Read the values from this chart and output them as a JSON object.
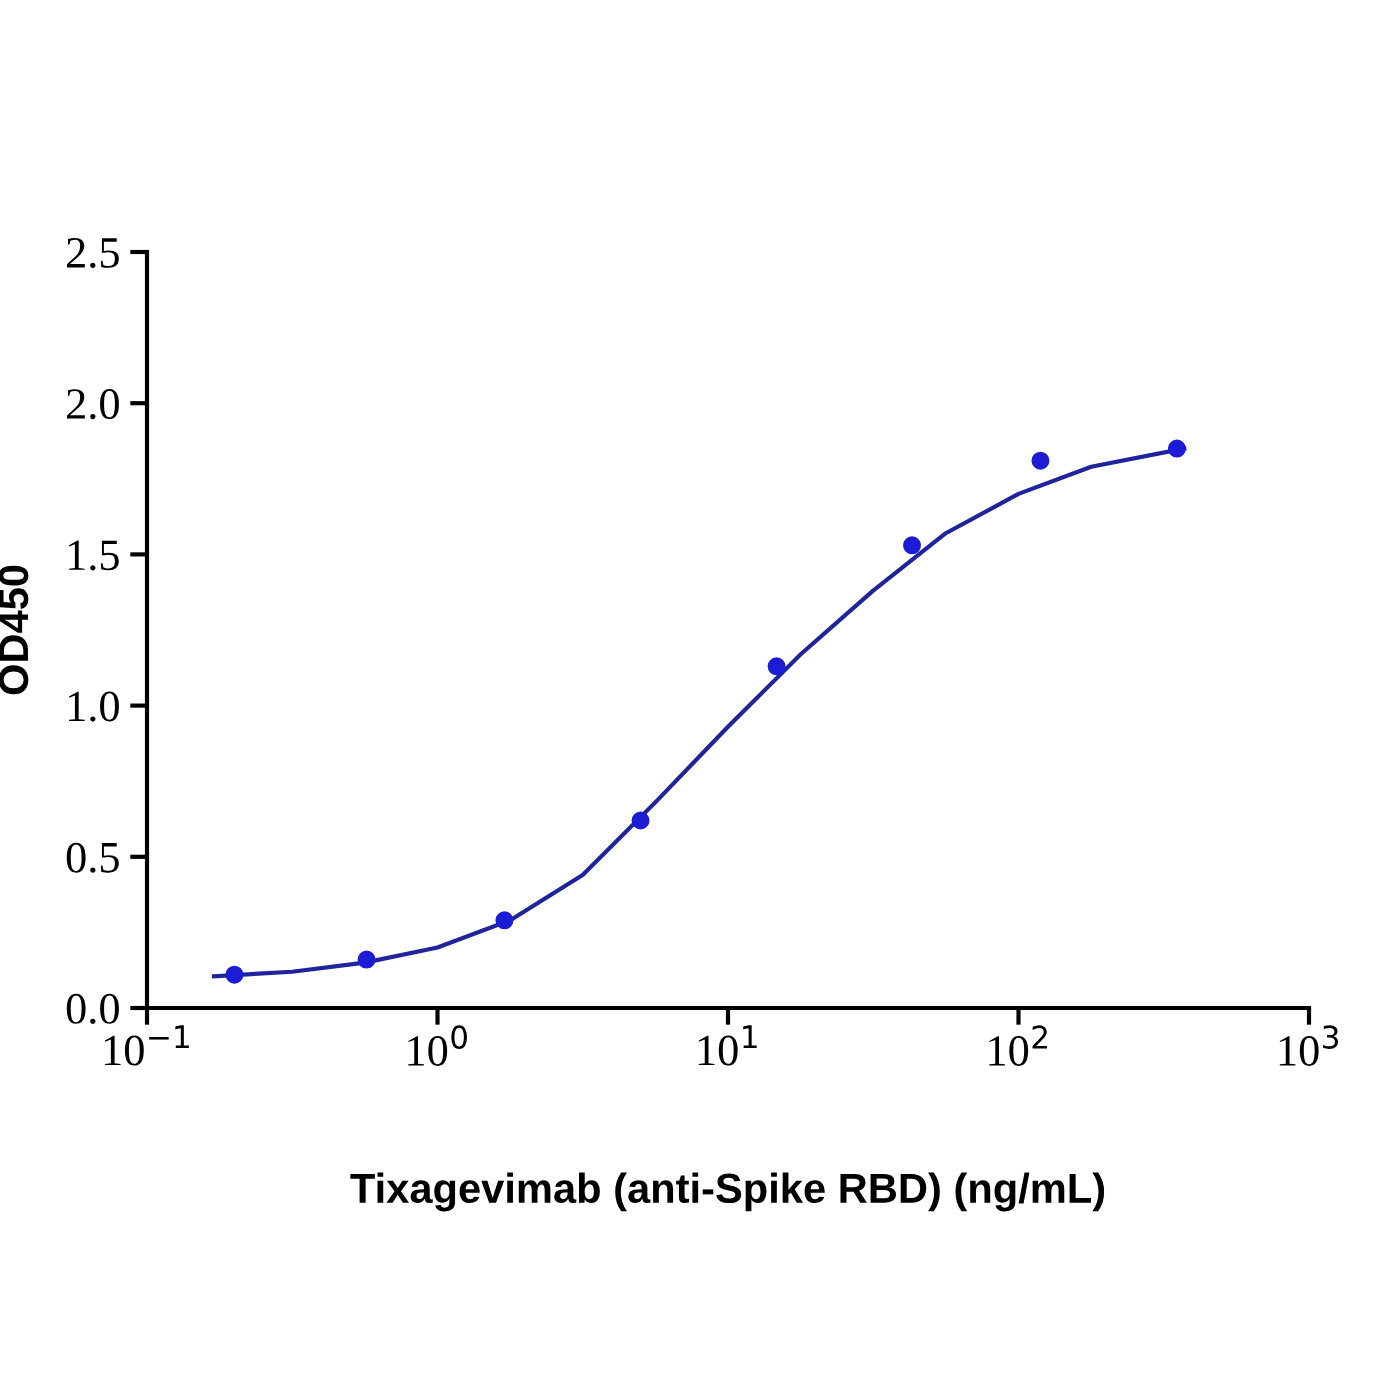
{
  "chart_data": {
    "type": "scatter",
    "xlabel": "Tixagevimab (anti-Spike RBD) (ng/mL)",
    "ylabel": "OD450",
    "log": "x",
    "grid": false,
    "series": [
      {
        "marker": "circle",
        "color": "#1c1cd6",
        "x": [
          0.2,
          0.57,
          1.7,
          5,
          14.7,
          43,
          119,
          351
        ],
        "values": [
          0.11,
          0.16,
          0.29,
          0.62,
          1.13,
          1.53,
          1.81,
          1.85
        ]
      },
      {
        "type": "line",
        "color": "#1f239c",
        "x": [
          0.17,
          0.316,
          0.562,
          1,
          1.78,
          3.16,
          5.62,
          10,
          17.8,
          31.6,
          56.2,
          100,
          178,
          372
        ],
        "values": [
          0.105,
          0.12,
          0.15,
          0.2,
          0.29,
          0.44,
          0.68,
          0.93,
          1.17,
          1.38,
          1.57,
          1.7,
          1.79,
          1.85
        ]
      }
    ],
    "xlim": [
      0.1,
      1000
    ],
    "xticks": [
      {
        "value": 0.1,
        "label": "10$^{−1}$"
      },
      {
        "value": 1,
        "label": "10$^{0}$"
      },
      {
        "value": 10,
        "label": "10$^{1}$"
      },
      {
        "value": 100,
        "label": "10$^{2}$"
      },
      {
        "value": 1000,
        "label": "10$^{3}$"
      }
    ],
    "ylim": [
      0,
      2.5
    ],
    "yticks": [
      {
        "value": 0,
        "label": "0.0"
      },
      {
        "value": 0.5,
        "label": "0.5"
      },
      {
        "value": 1,
        "label": "1.0"
      },
      {
        "value": 1.5,
        "label": "1.5"
      },
      {
        "value": 2,
        "label": "2.0"
      },
      {
        "value": 2.5,
        "label": "2.5"
      }
    ]
  }
}
